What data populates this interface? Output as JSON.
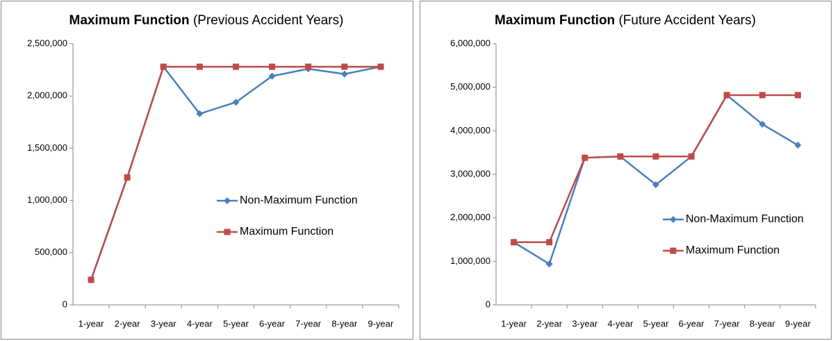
{
  "chart_data": [
    {
      "type": "line",
      "title": "Maximum Function",
      "subtitle": "(Previous Accident Years)",
      "categories": [
        "1-year",
        "2-year",
        "3-year",
        "4-year",
        "5-year",
        "6-year",
        "7-year",
        "8-year",
        "9-year"
      ],
      "series": [
        {
          "name": "Non-Maximum Function",
          "color": "#4a7ebb",
          "marker": "diamond",
          "values": [
            240000,
            1220000,
            2280000,
            1830000,
            1940000,
            2190000,
            2260000,
            2210000,
            2280000
          ]
        },
        {
          "name": "Maximum Function",
          "color": "#be4b48",
          "marker": "square",
          "values": [
            240000,
            1220000,
            2280000,
            2280000,
            2280000,
            2280000,
            2280000,
            2280000,
            2280000
          ]
        }
      ],
      "ylim": [
        0,
        2500000
      ],
      "yticks": [
        0,
        {
          "value": 500000,
          "label": "500,000"
        },
        {
          "value": 1000000,
          "label": "1,000,000"
        },
        {
          "value": 1500000,
          "label": "1,500,000"
        },
        {
          "value": 2000000,
          "label": "2,000,000"
        },
        {
          "value": 2500000,
          "label": "2,500,000"
        }
      ],
      "grid": false,
      "legend": "right"
    },
    {
      "type": "line",
      "title": "Maximum Function",
      "subtitle": "(Future Accident Years)",
      "categories": [
        "1-year",
        "2-year",
        "3-year",
        "4-year",
        "5-year",
        "6-year",
        "7-year",
        "8-year",
        "9-year"
      ],
      "series": [
        {
          "name": "Non-Maximum Function",
          "color": "#4a7ebb",
          "marker": "diamond",
          "values": [
            1440000,
            940000,
            3380000,
            3410000,
            2760000,
            3410000,
            4820000,
            4150000,
            3670000
          ]
        },
        {
          "name": "Maximum Function",
          "color": "#be4b48",
          "marker": "square",
          "values": [
            1440000,
            1440000,
            3380000,
            3410000,
            3410000,
            3410000,
            4820000,
            4820000,
            4820000
          ]
        }
      ],
      "ylim": [
        0,
        6000000
      ],
      "yticks": [
        0,
        {
          "value": 1000000,
          "label": "1,000,000"
        },
        {
          "value": 2000000,
          "label": "2,000,000"
        },
        {
          "value": 3000000,
          "label": "3,000,000"
        },
        {
          "value": 4000000,
          "label": "4,000,000"
        },
        {
          "value": 5000000,
          "label": "5,000,000"
        },
        {
          "value": 6000000,
          "label": "6,000,000"
        }
      ],
      "grid": false,
      "legend": "right"
    }
  ]
}
